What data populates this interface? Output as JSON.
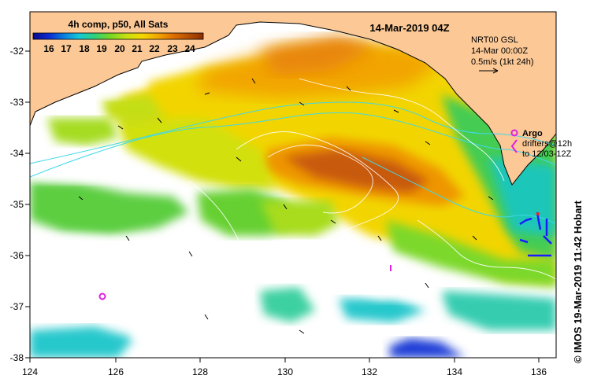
{
  "map": {
    "title_left": "4h comp, p50, All Sats",
    "date_title": "14-Mar-2019 04Z",
    "colorbar": {
      "ticks": [
        "16",
        "17",
        "18",
        "19",
        "20",
        "21",
        "22",
        "23",
        "24"
      ],
      "colors": [
        "#0a0a8c",
        "#0a2ad0",
        "#0a7ee0",
        "#12c8d8",
        "#2fd07a",
        "#74d826",
        "#c8e010",
        "#f4d800",
        "#f2a800",
        "#e07000",
        "#b85000",
        "#8c2c00"
      ]
    },
    "current_info": {
      "line1": "NRT00 GSL",
      "line2": "14-Mar 00:00Z",
      "line3": "0.5m/s (1kt 24h)"
    },
    "argo_legend": {
      "argo_label": "Argo",
      "drifters_line1": "drifters@12h",
      "drifters_line2": "to 12/03-12Z"
    },
    "credit": "© IMOS 19-Mar-2019 11:42 Hobart",
    "x_ticks": [
      "124",
      "126",
      "128",
      "130",
      "132",
      "134",
      "136"
    ],
    "y_ticks": [
      "-32",
      "-33",
      "-34",
      "-35",
      "-36",
      "-37",
      "-38"
    ],
    "land_color": "#fbc896",
    "argo_color": "#e020e0",
    "drifter_color": "#1a1aff",
    "contour_color": "#40d8e8"
  }
}
